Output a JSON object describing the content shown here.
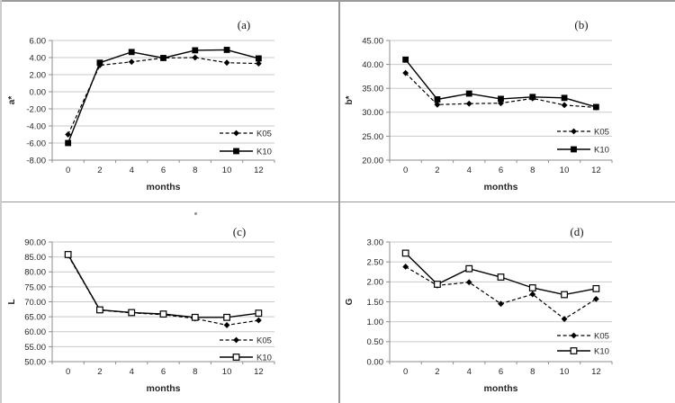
{
  "page": {
    "background": "#ffffff"
  },
  "colors": {
    "series": "#000000",
    "gridline": "#c9c9c9",
    "axis": "#8c8c8c",
    "tick_text": "#262626",
    "panel_border": "#989898"
  },
  "chart_data": [
    {
      "type": "line",
      "panel_label": "(a)",
      "xlabel": "months",
      "ylabel": "a*",
      "categories": [
        "0",
        "2",
        "4",
        "6",
        "8",
        "10",
        "12"
      ],
      "ylim": [
        -8,
        6
      ],
      "ystep": 2,
      "ytick_decimals": 2,
      "grid": true,
      "legend_position": "lower-right",
      "series": [
        {
          "name": "K05",
          "line_style": "dashed",
          "marker": "diamond-filled",
          "values": [
            -5.0,
            3.1,
            3.5,
            3.95,
            4.0,
            3.4,
            3.3
          ]
        },
        {
          "name": "K10",
          "line_style": "solid",
          "marker": "square-filled",
          "values": [
            -6.0,
            3.4,
            4.65,
            3.95,
            4.85,
            4.9,
            3.9
          ]
        }
      ]
    },
    {
      "type": "line",
      "panel_label": "(b)",
      "xlabel": "months",
      "ylabel": "b*",
      "categories": [
        "0",
        "2",
        "4",
        "6",
        "8",
        "10",
        "12"
      ],
      "ylim": [
        20,
        45
      ],
      "ystep": 5,
      "ytick_decimals": 2,
      "grid": true,
      "legend_position": "lower-right",
      "series": [
        {
          "name": "K05",
          "line_style": "dashed",
          "marker": "diamond-filled",
          "values": [
            38.2,
            31.6,
            31.8,
            31.9,
            32.9,
            31.5,
            31.0
          ]
        },
        {
          "name": "K10",
          "line_style": "solid",
          "marker": "square-filled",
          "values": [
            41.0,
            32.7,
            33.9,
            32.8,
            33.2,
            33.0,
            31.1
          ]
        }
      ]
    },
    {
      "type": "line",
      "panel_label": "(c)",
      "xlabel": "months",
      "ylabel": "L",
      "categories": [
        "0",
        "2",
        "4",
        "6",
        "8",
        "10",
        "12"
      ],
      "ylim": [
        50,
        90
      ],
      "ystep": 5,
      "ytick_decimals": 2,
      "grid": true,
      "legend_position": "lower-right",
      "series": [
        {
          "name": "K05",
          "line_style": "dashed",
          "marker": "diamond-filled",
          "values": [
            85.5,
            67.2,
            66.3,
            65.7,
            64.4,
            62.2,
            63.8
          ]
        },
        {
          "name": "K10",
          "line_style": "solid",
          "marker": "square-open",
          "values": [
            85.8,
            67.3,
            66.4,
            65.9,
            64.8,
            64.8,
            66.2
          ]
        }
      ]
    },
    {
      "type": "line",
      "panel_label": "(d)",
      "xlabel": "months",
      "ylabel": "G",
      "categories": [
        "0",
        "2",
        "4",
        "6",
        "8",
        "10",
        "12"
      ],
      "ylim": [
        0,
        3
      ],
      "ystep": 0.5,
      "ytick_decimals": 2,
      "grid": true,
      "legend_position": "lower-right",
      "series": [
        {
          "name": "K05",
          "line_style": "dashed",
          "marker": "diamond-filled",
          "values": [
            2.38,
            1.91,
            1.99,
            1.45,
            1.69,
            1.07,
            1.57
          ]
        },
        {
          "name": "K10",
          "line_style": "solid",
          "marker": "square-open",
          "values": [
            2.72,
            1.94,
            2.33,
            2.12,
            1.85,
            1.68,
            1.83
          ]
        }
      ]
    }
  ]
}
